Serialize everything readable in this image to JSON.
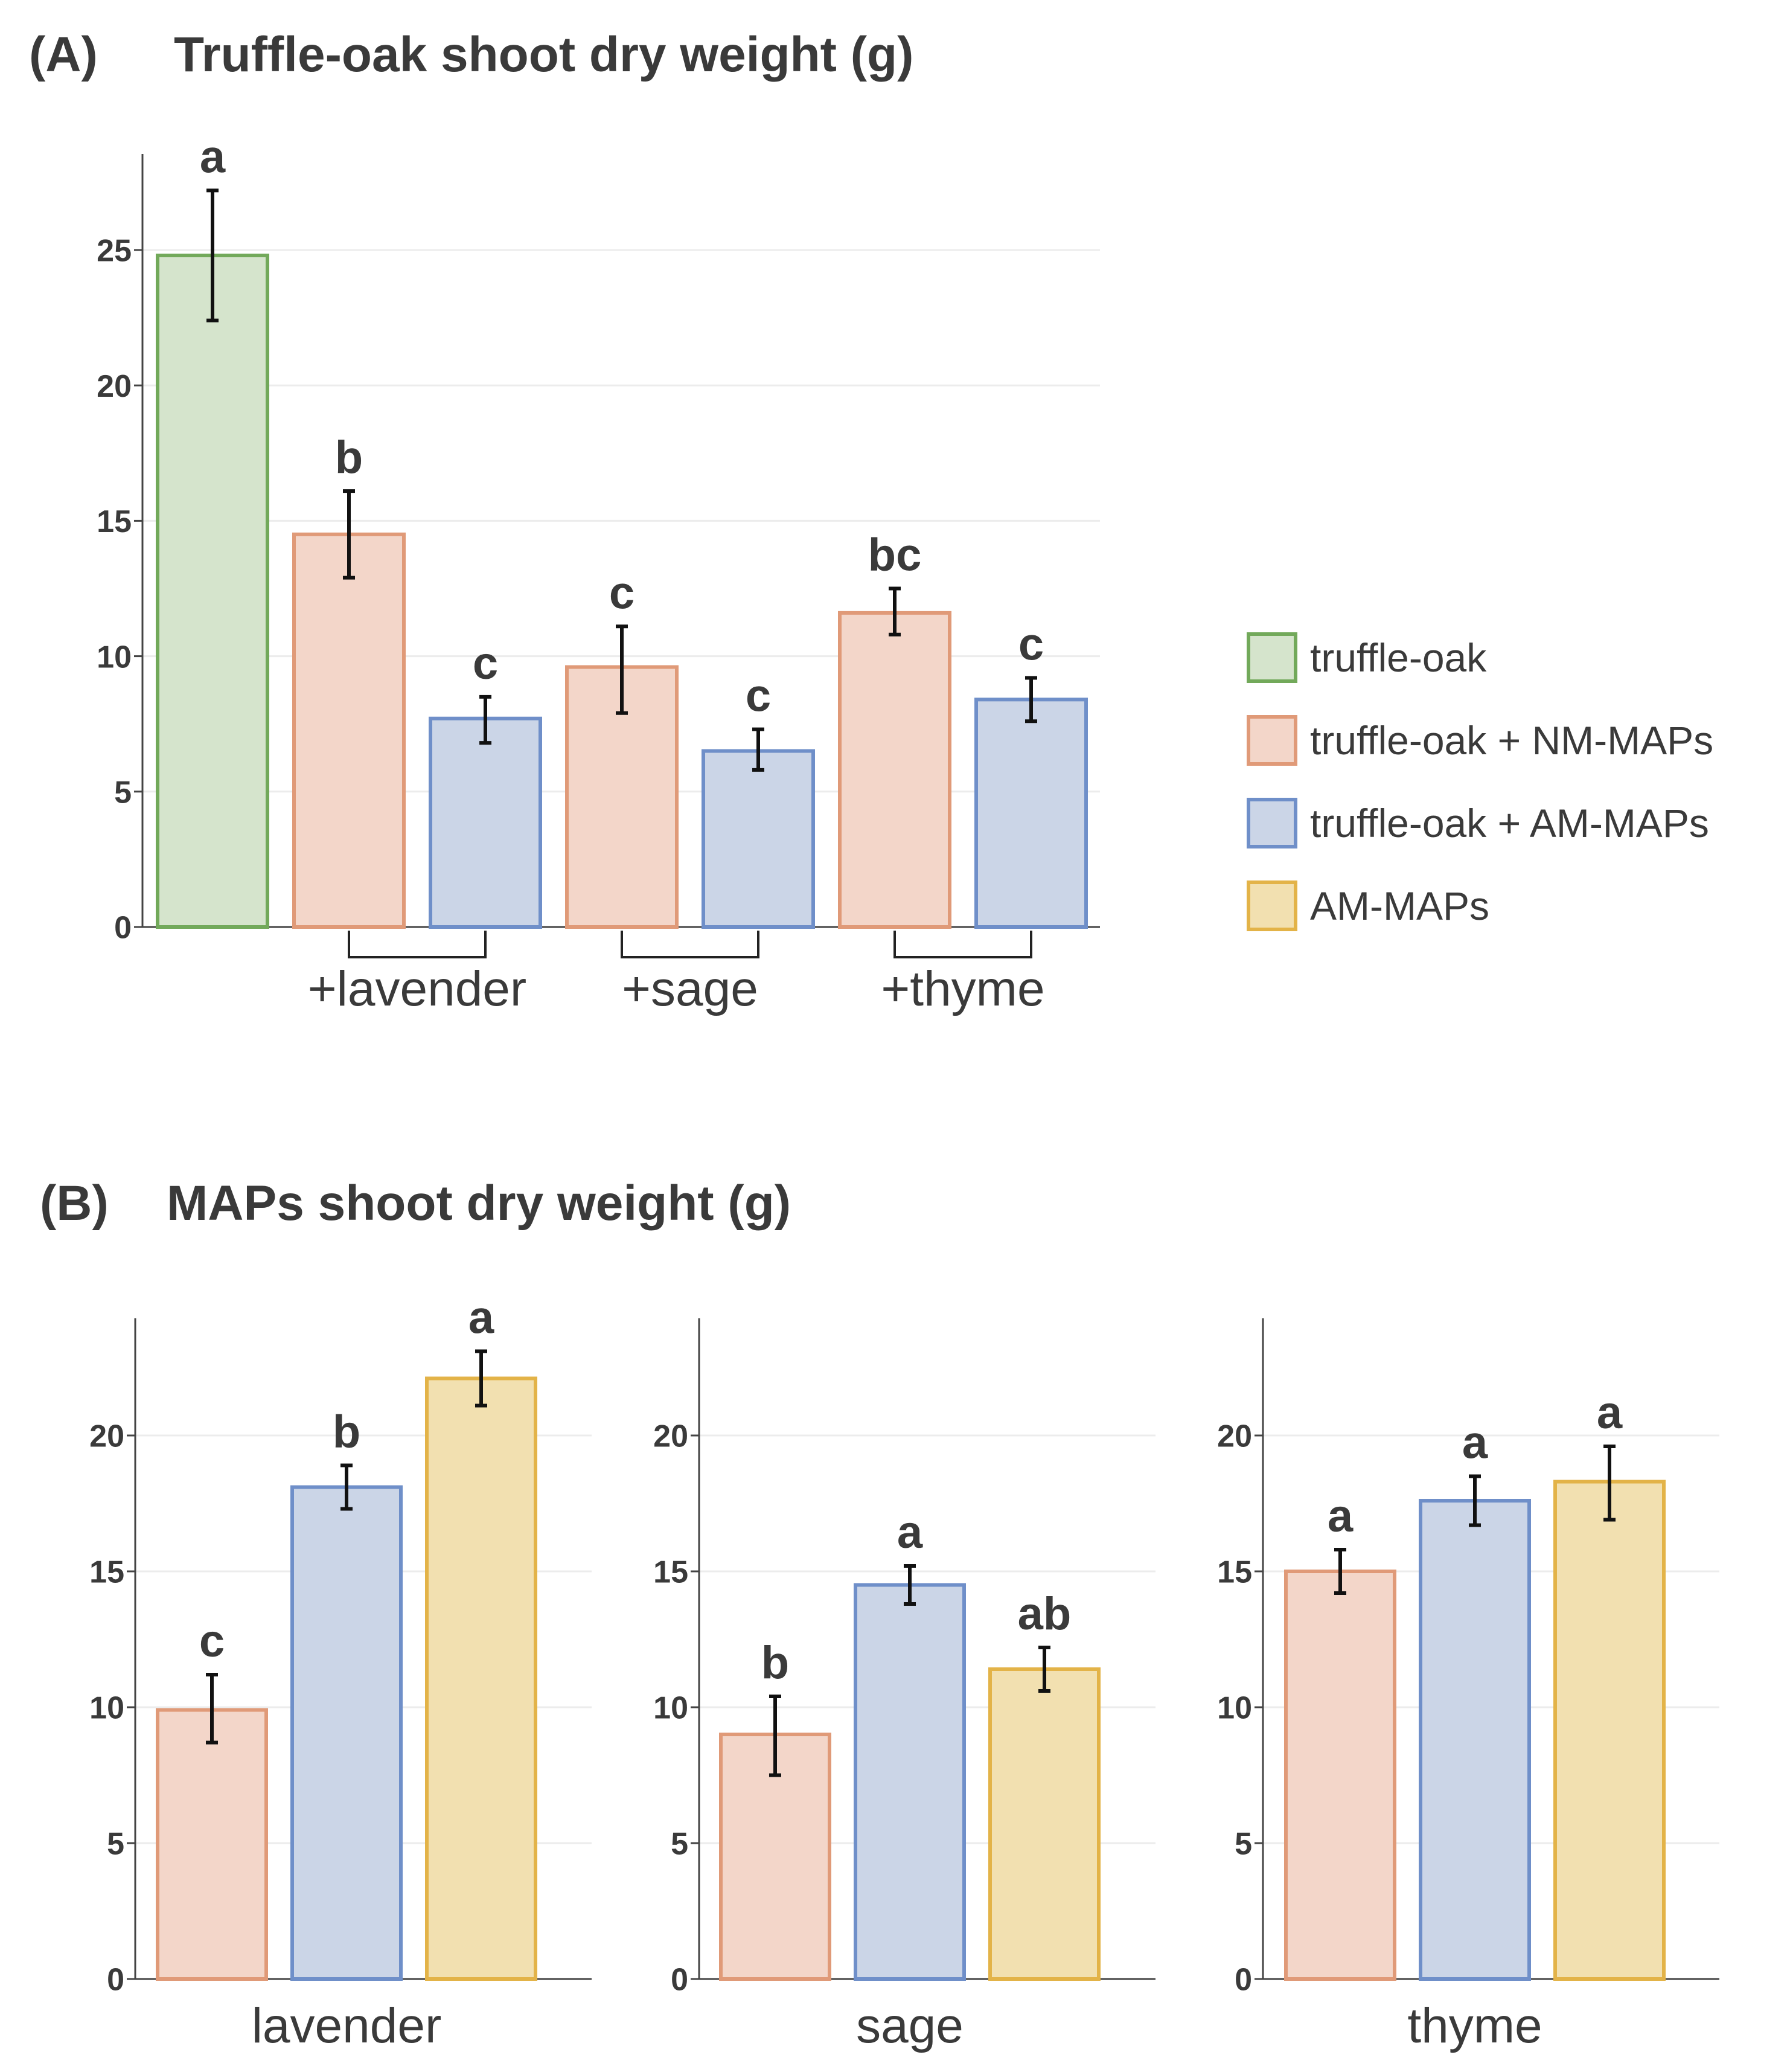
{
  "colors": {
    "truffle_oak": {
      "fill": "#d5e4cc",
      "stroke": "#72a95a"
    },
    "nm_maps": {
      "fill": "#f3d6c9",
      "stroke": "#e09a78"
    },
    "am_maps_oak": {
      "fill": "#cbd5e7",
      "stroke": "#6f8fc9"
    },
    "am_maps": {
      "fill": "#f2e0b0",
      "stroke": "#e3b348"
    }
  },
  "legend": [
    {
      "label": "truffle-oak",
      "color_key": "truffle_oak"
    },
    {
      "label": "truffle-oak + NM-MAPs",
      "color_key": "nm_maps"
    },
    {
      "label": "truffle-oak + AM-MAPs",
      "color_key": "am_maps_oak"
    },
    {
      "label": "AM-MAPs",
      "color_key": "am_maps"
    }
  ],
  "chart_data": [
    {
      "type": "bar",
      "panel": "(A)",
      "title": "Truffle-oak shoot dry weight (g)",
      "ylim": [
        0,
        28
      ],
      "yticks": [
        0,
        5,
        10,
        15,
        20,
        25
      ],
      "grid": true,
      "groups": [
        {
          "label": "",
          "bars": [
            {
              "series": "truffle-oak",
              "color_key": "truffle_oak",
              "value": 24.8,
              "err_low": 22.4,
              "err_high": 27.2,
              "sig": "a"
            }
          ]
        },
        {
          "label": "+lavender",
          "bars": [
            {
              "series": "truffle-oak + NM-MAPs",
              "color_key": "nm_maps",
              "value": 14.5,
              "err_low": 12.9,
              "err_high": 16.1,
              "sig": "b"
            },
            {
              "series": "truffle-oak + AM-MAPs",
              "color_key": "am_maps_oak",
              "value": 7.7,
              "err_low": 6.8,
              "err_high": 8.5,
              "sig": "c"
            }
          ]
        },
        {
          "label": "+sage",
          "bars": [
            {
              "series": "truffle-oak + NM-MAPs",
              "color_key": "nm_maps",
              "value": 9.6,
              "err_low": 7.9,
              "err_high": 11.1,
              "sig": "c"
            },
            {
              "series": "truffle-oak + AM-MAPs",
              "color_key": "am_maps_oak",
              "value": 6.5,
              "err_low": 5.8,
              "err_high": 7.3,
              "sig": "c"
            }
          ]
        },
        {
          "label": "+thyme",
          "bars": [
            {
              "series": "truffle-oak + NM-MAPs",
              "color_key": "nm_maps",
              "value": 11.6,
              "err_low": 10.8,
              "err_high": 12.5,
              "sig": "bc"
            },
            {
              "series": "truffle-oak + AM-MAPs",
              "color_key": "am_maps_oak",
              "value": 8.4,
              "err_low": 7.6,
              "err_high": 9.2,
              "sig": "c"
            }
          ]
        }
      ]
    },
    {
      "type": "bar",
      "panel": "(B)",
      "title": "MAPs shoot dry weight (g)",
      "ylim": [
        0,
        24.3
      ],
      "yticks": [
        0,
        5,
        10,
        15,
        20
      ],
      "grid": true,
      "subplots": [
        {
          "label": "lavender",
          "bars": [
            {
              "series": "truffle-oak + NM-MAPs",
              "color_key": "nm_maps",
              "value": 9.9,
              "err_low": 8.7,
              "err_high": 11.2,
              "sig": "c"
            },
            {
              "series": "truffle-oak + AM-MAPs",
              "color_key": "am_maps_oak",
              "value": 18.1,
              "err_low": 17.3,
              "err_high": 18.9,
              "sig": "b"
            },
            {
              "series": "AM-MAPs",
              "color_key": "am_maps",
              "value": 22.1,
              "err_low": 21.1,
              "err_high": 23.1,
              "sig": "a"
            }
          ]
        },
        {
          "label": "sage",
          "bars": [
            {
              "series": "truffle-oak + NM-MAPs",
              "color_key": "nm_maps",
              "value": 9.0,
              "err_low": 7.5,
              "err_high": 10.4,
              "sig": "b"
            },
            {
              "series": "truffle-oak + AM-MAPs",
              "color_key": "am_maps_oak",
              "value": 14.5,
              "err_low": 13.8,
              "err_high": 15.2,
              "sig": "a"
            },
            {
              "series": "AM-MAPs",
              "color_key": "am_maps",
              "value": 11.4,
              "err_low": 10.6,
              "err_high": 12.2,
              "sig": "ab"
            }
          ]
        },
        {
          "label": "thyme",
          "bars": [
            {
              "series": "truffle-oak + NM-MAPs",
              "color_key": "nm_maps",
              "value": 15.0,
              "err_low": 14.2,
              "err_high": 15.8,
              "sig": "a"
            },
            {
              "series": "truffle-oak + AM-MAPs",
              "color_key": "am_maps_oak",
              "value": 17.6,
              "err_low": 16.7,
              "err_high": 18.5,
              "sig": "a"
            },
            {
              "series": "AM-MAPs",
              "color_key": "am_maps",
              "value": 18.3,
              "err_low": 16.9,
              "err_high": 19.6,
              "sig": "a"
            }
          ]
        }
      ]
    }
  ]
}
